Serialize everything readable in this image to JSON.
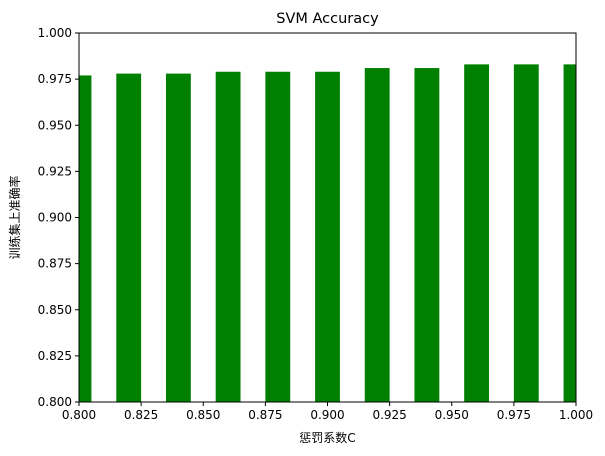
{
  "chart_data": {
    "type": "bar",
    "title": "SVM Accuracy",
    "xlabel": "惩罚系数C",
    "ylabel": "训练集上准确率",
    "x": [
      0.8,
      0.82,
      0.84,
      0.86,
      0.88,
      0.9,
      0.92,
      0.94,
      0.96,
      0.98,
      1.0
    ],
    "values": [
      0.977,
      0.978,
      0.978,
      0.979,
      0.979,
      0.979,
      0.981,
      0.981,
      0.983,
      0.983,
      0.983
    ],
    "bar_width": 0.01,
    "bar_color": "#008000",
    "xlim": [
      0.8,
      1.0
    ],
    "ylim": [
      0.8,
      1.0
    ],
    "xticks": [
      "0.800",
      "0.825",
      "0.850",
      "0.875",
      "0.900",
      "0.925",
      "0.950",
      "0.975",
      "1.000"
    ],
    "xtick_values": [
      0.8,
      0.825,
      0.85,
      0.875,
      0.9,
      0.925,
      0.95,
      0.975,
      1.0
    ],
    "yticks": [
      "0.800",
      "0.825",
      "0.850",
      "0.875",
      "0.900",
      "0.925",
      "0.950",
      "0.975",
      "1.000"
    ],
    "ytick_values": [
      0.8,
      0.825,
      0.85,
      0.875,
      0.9,
      0.925,
      0.95,
      0.975,
      1.0
    ],
    "grid": false
  }
}
